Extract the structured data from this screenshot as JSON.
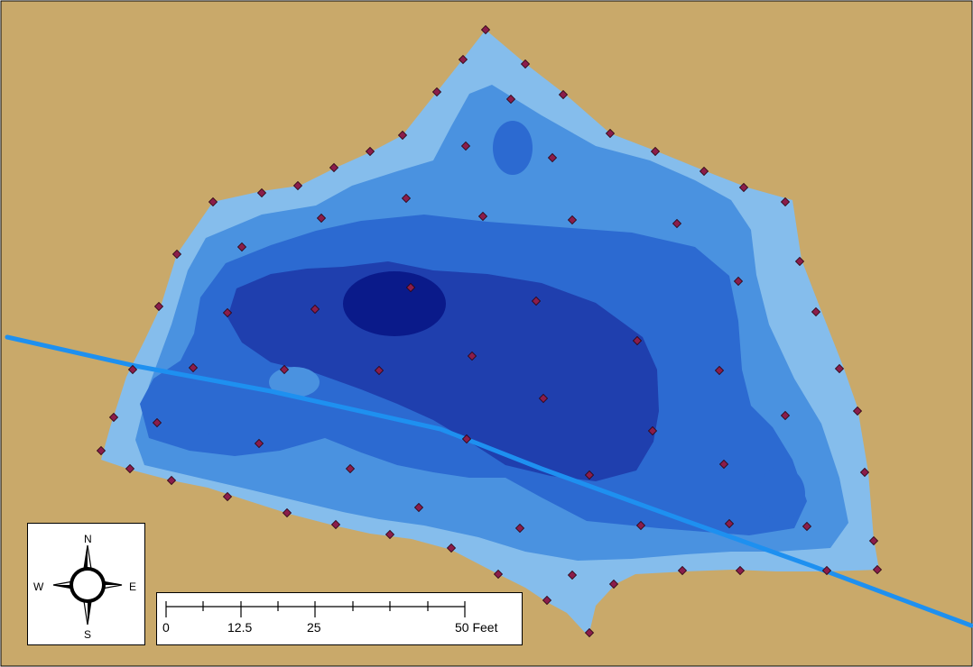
{
  "map": {
    "colors": {
      "land": "#c9a96a",
      "depth_1": "#85bdec",
      "depth_2": "#4a92e0",
      "depth_3": "#2c6ad1",
      "depth_4": "#1f3fae",
      "depth_5": "#0a1a8a",
      "stream": "#1e90f0",
      "sample_point": "#8a1d4a"
    },
    "layers": [
      "land",
      "depth-contours",
      "stream",
      "sample-points"
    ]
  },
  "north_arrow": {
    "n": "N",
    "s": "S",
    "w": "W",
    "e": "E",
    "icon": "compass-rose-icon"
  },
  "scale_bar": {
    "labels": [
      "0",
      "12.5",
      "25",
      "50 Feet"
    ],
    "unit": "Feet",
    "max": 50
  }
}
